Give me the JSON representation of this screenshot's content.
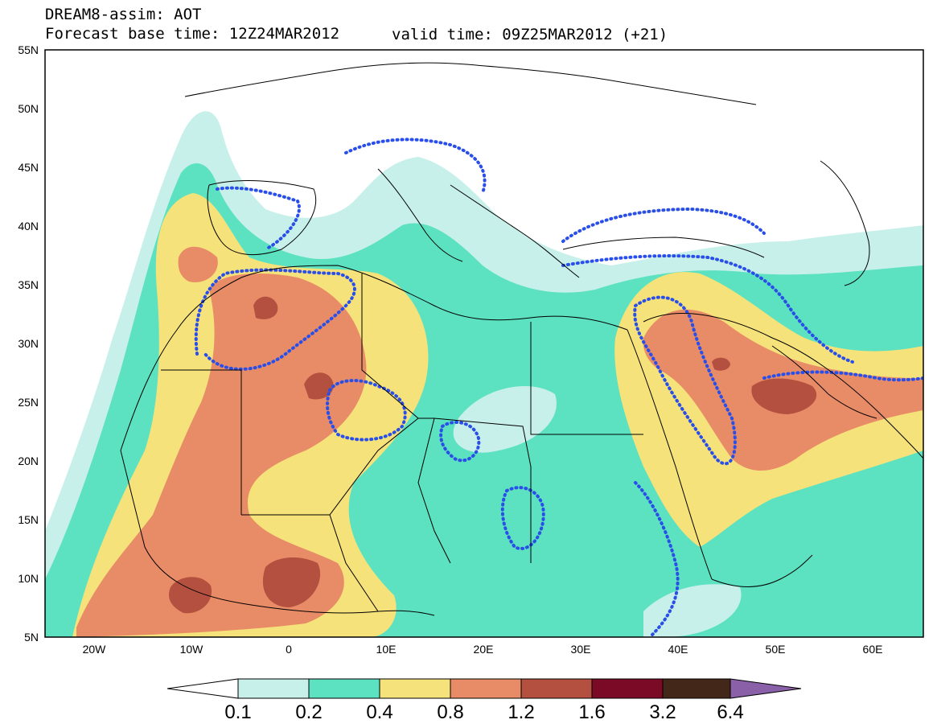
{
  "title_line1": "DREAM8-assim: AOT",
  "title_line2": "Forecast base time: 12Z24MAR2012",
  "valid_time": "valid time: 09Z25MAR2012 (+21)",
  "lat_labels": [
    "55N",
    "50N",
    "45N",
    "40N",
    "35N",
    "30N",
    "25N",
    "20N",
    "15N",
    "10N",
    "5N"
  ],
  "lon_labels": [
    "20W",
    "10W",
    "0",
    "10E",
    "20E",
    "30E",
    "40E",
    "50E",
    "60E"
  ],
  "colorbar": {
    "labels": [
      "0.1",
      "0.2",
      "0.4",
      "0.8",
      "1.2",
      "1.6",
      "3.2",
      "6.4"
    ],
    "colors": [
      "#ffffff",
      "#c8f0ea",
      "#5ce2c0",
      "#f6e27a",
      "#e88c68",
      "#b4503f",
      "#7a0a25",
      "#43281a",
      "#8a60a8"
    ]
  },
  "contour_color": "#2a4fe8"
}
